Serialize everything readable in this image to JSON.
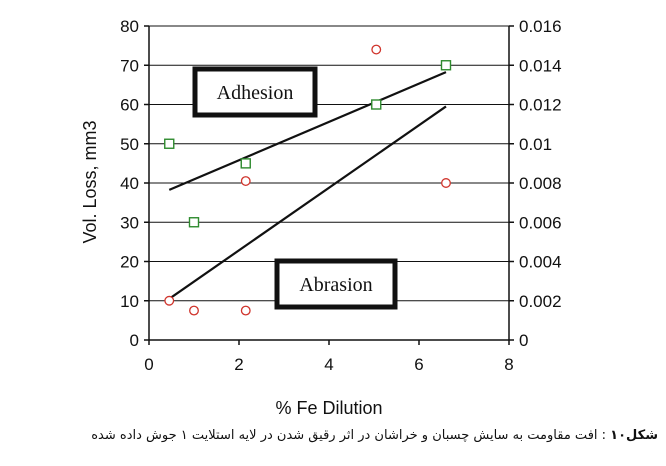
{
  "chart_data": {
    "type": "scatter",
    "xlabel": "% Fe Dilution",
    "ylabel": "Vol. Loss, mm3",
    "xlim": [
      0,
      8
    ],
    "ylim": [
      0,
      80
    ],
    "y2lim": [
      0,
      0.016
    ],
    "x_ticks": [
      "0",
      "2",
      "4",
      "6",
      "8"
    ],
    "y_ticks": [
      "0",
      "10",
      "20",
      "30",
      "40",
      "50",
      "60",
      "70",
      "80"
    ],
    "y2_ticks": [
      "0",
      "0.002",
      "0.004",
      "0.006",
      "0.008",
      "0.01",
      "0.012",
      "0.014",
      "0.016"
    ],
    "grid": "horizontal",
    "series": [
      {
        "name": "Adhesion",
        "marker": "square",
        "color": "#2e8b2e",
        "axis": "right",
        "points": [
          {
            "x": 0.45,
            "y": 0.01
          },
          {
            "x": 1.0,
            "y": 0.006
          },
          {
            "x": 2.15,
            "y": 0.009
          },
          {
            "x": 5.05,
            "y": 0.012
          },
          {
            "x": 6.6,
            "y": 0.014
          }
        ],
        "trendline": [
          {
            "x": 0.45,
            "y": 0.00765
          },
          {
            "x": 6.6,
            "y": 0.01365
          }
        ]
      },
      {
        "name": "Abrasion",
        "marker": "circle",
        "color": "#d0342c",
        "axis": "left",
        "points": [
          {
            "x": 0.45,
            "y": 10
          },
          {
            "x": 1.0,
            "y": 7.5
          },
          {
            "x": 2.15,
            "y": 40.5
          },
          {
            "x": 2.15,
            "y": 7.5
          },
          {
            "x": 5.05,
            "y": 74
          },
          {
            "x": 6.6,
            "y": 40
          }
        ],
        "trendline": [
          {
            "x": 0.45,
            "y": 10.5
          },
          {
            "x": 6.6,
            "y": 59.5
          }
        ]
      }
    ],
    "annotations": [
      "Adhesion",
      "Abrasion"
    ]
  },
  "caption": {
    "label": "شکل۱۰",
    "text": " : افت مقاومت به سایش چسبان و خراشان در اثر رقیق شدن در لایه استلایت ۱ جوش داده شده"
  },
  "colors": {
    "adhesion_marker": "#2e8b2e",
    "abrasion_marker": "#d0342c",
    "axis": "#111111",
    "grid": "#111111"
  }
}
